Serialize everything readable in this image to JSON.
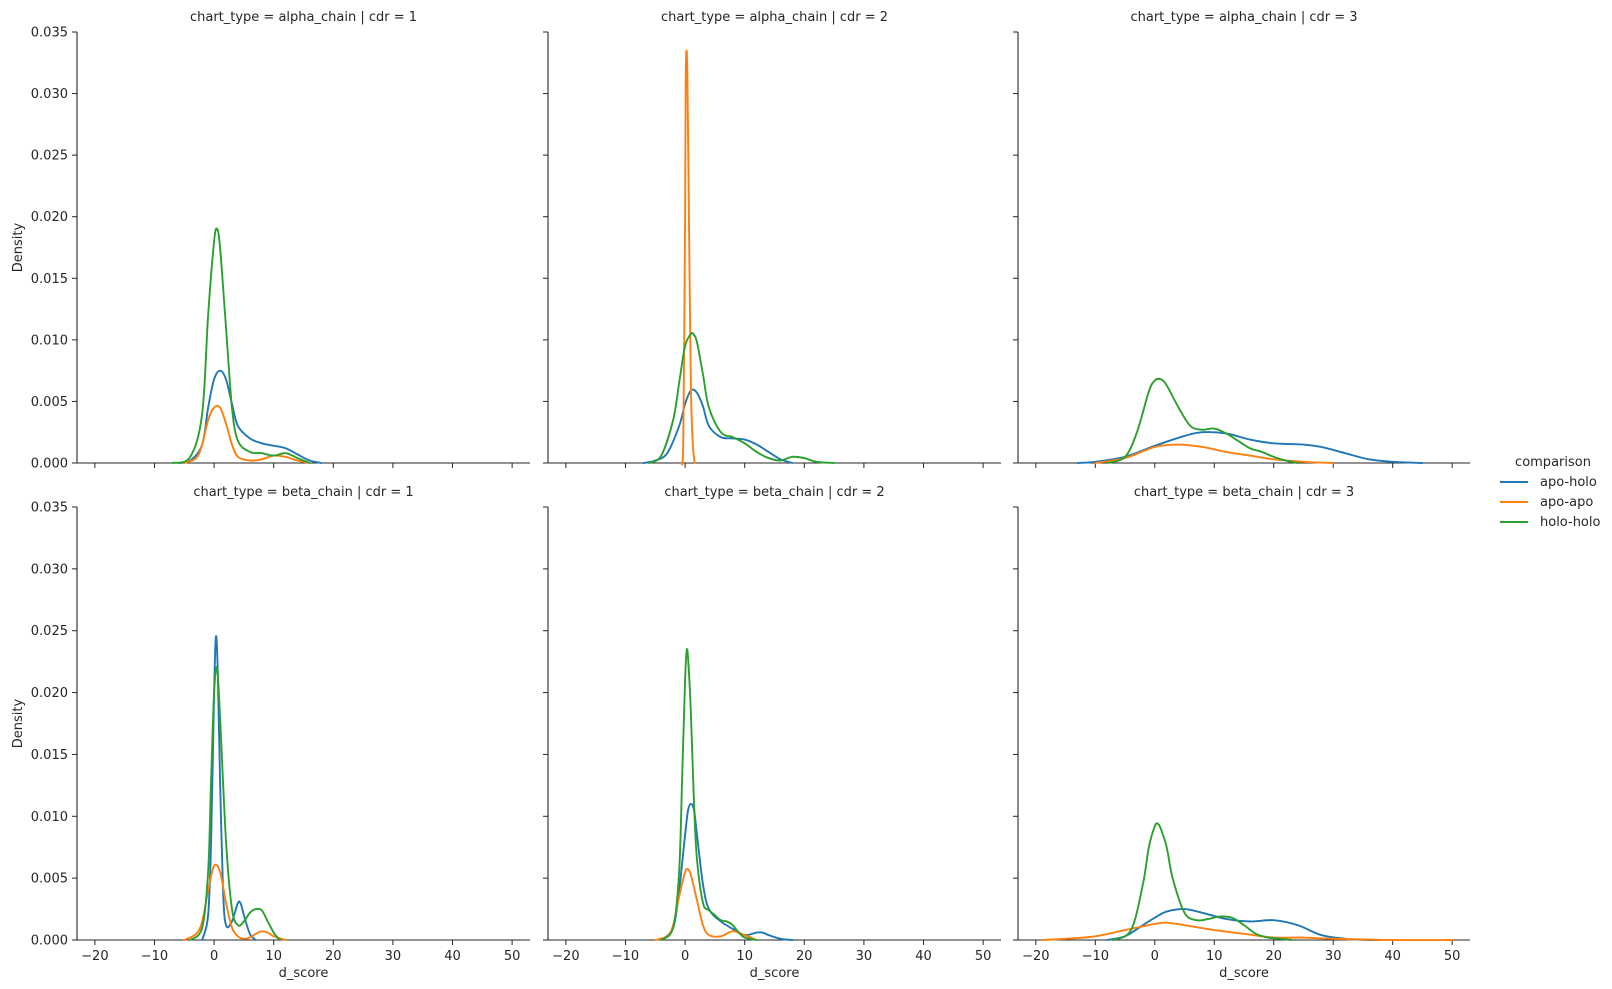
{
  "colors": {
    "apo-holo": "#1f77b4",
    "apo-apo": "#ff7f0e",
    "holo-holo": "#2ca02c",
    "axis": "#262626",
    "background": "#ffffff"
  },
  "legend": {
    "title": "comparison",
    "entries": [
      "apo-holo",
      "apo-apo",
      "holo-holo"
    ],
    "placement": "right-center"
  },
  "chart_data": [
    {
      "type": "line",
      "title": "chart_type = alpha_chain | cdr = 1",
      "xlabel": "",
      "ylabel": "Density",
      "xlim": [
        -23,
        53
      ],
      "ylim": [
        0,
        0.035
      ],
      "series": [
        {
          "name": "apo-holo",
          "x": [
            -6,
            -4,
            -2,
            -1,
            0,
            1,
            2,
            3,
            4,
            6,
            8,
            10,
            12,
            14,
            16,
            18
          ],
          "y": [
            0,
            0.0002,
            0.0015,
            0.0045,
            0.0068,
            0.0075,
            0.0068,
            0.0048,
            0.003,
            0.002,
            0.0016,
            0.0014,
            0.0012,
            0.0007,
            0.0002,
            0
          ]
        },
        {
          "name": "apo-apo",
          "x": [
            -5,
            -3,
            -2,
            -1,
            0,
            1,
            2,
            3,
            4,
            6,
            8,
            10,
            12,
            14,
            16
          ],
          "y": [
            0,
            0.0004,
            0.0015,
            0.0035,
            0.0045,
            0.0045,
            0.0032,
            0.0015,
            0.0005,
            0.0002,
            0.0003,
            0.0006,
            0.0005,
            0.0002,
            0
          ]
        },
        {
          "name": "holo-holo",
          "x": [
            -7,
            -4,
            -2,
            -1,
            0,
            0.5,
            1,
            2,
            3,
            4,
            6,
            8,
            10,
            12,
            14,
            16
          ],
          "y": [
            0,
            0.0005,
            0.004,
            0.012,
            0.018,
            0.019,
            0.0175,
            0.011,
            0.0045,
            0.0018,
            0.0009,
            0.0008,
            0.0006,
            0.0008,
            0.0004,
            0
          ]
        }
      ]
    },
    {
      "type": "line",
      "title": "chart_type = alpha_chain | cdr = 2",
      "xlabel": "",
      "ylabel": "",
      "xlim": [
        -23,
        53
      ],
      "ylim": [
        0,
        0.035
      ],
      "series": [
        {
          "name": "apo-holo",
          "x": [
            -7,
            -5,
            -3,
            -1,
            0,
            1,
            2,
            3,
            4,
            6,
            8,
            10,
            12,
            14,
            16,
            18
          ],
          "y": [
            0,
            0.0002,
            0.0008,
            0.003,
            0.0048,
            0.0059,
            0.0057,
            0.0046,
            0.003,
            0.0021,
            0.002,
            0.0019,
            0.0015,
            0.0009,
            0.0003,
            0
          ]
        },
        {
          "name": "apo-apo",
          "x": [
            -0.6,
            -0.3,
            0,
            0.1,
            0.25,
            0.4,
            0.6,
            0.8,
            1.0,
            1.3,
            1.6
          ],
          "y": [
            0,
            0.002,
            0.02,
            0.031,
            0.0335,
            0.031,
            0.022,
            0.013,
            0.0055,
            0.0015,
            0
          ]
        },
        {
          "name": "holo-holo",
          "x": [
            -6,
            -4,
            -2,
            -1,
            0,
            1,
            1.5,
            2,
            3,
            4,
            6,
            8,
            10,
            12,
            14,
            16,
            18,
            20,
            22,
            25
          ],
          "y": [
            0,
            0.0006,
            0.0035,
            0.0065,
            0.0095,
            0.0105,
            0.0104,
            0.0098,
            0.0072,
            0.0045,
            0.0025,
            0.0021,
            0.0016,
            0.0009,
            0.0004,
            0.0002,
            0.0005,
            0.0004,
            0.0001,
            0
          ]
        }
      ]
    },
    {
      "type": "line",
      "title": "chart_type = alpha_chain | cdr = 3",
      "xlabel": "",
      "ylabel": "",
      "xlim": [
        -23,
        53
      ],
      "ylim": [
        0,
        0.035
      ],
      "series": [
        {
          "name": "apo-holo",
          "x": [
            -13,
            -10,
            -5,
            0,
            5,
            8,
            12,
            16,
            20,
            25,
            28,
            32,
            36,
            40,
            45
          ],
          "y": [
            0,
            0.0001,
            0.0005,
            0.0014,
            0.0022,
            0.0025,
            0.0024,
            0.0019,
            0.0016,
            0.0015,
            0.0013,
            0.0008,
            0.0003,
            0.0001,
            0
          ]
        },
        {
          "name": "apo-apo",
          "x": [
            -10,
            -5,
            0,
            4,
            8,
            12,
            16,
            20,
            25,
            30
          ],
          "y": [
            0,
            0.0004,
            0.0013,
            0.0015,
            0.0013,
            0.0009,
            0.0006,
            0.0003,
            0.0001,
            0
          ]
        },
        {
          "name": "holo-holo",
          "x": [
            -8,
            -5,
            -3,
            -1,
            0,
            1,
            2,
            4,
            6,
            8,
            10,
            12,
            14,
            16,
            18,
            20,
            22,
            24
          ],
          "y": [
            0,
            0.0005,
            0.0025,
            0.0058,
            0.0067,
            0.0068,
            0.0063,
            0.0045,
            0.003,
            0.0027,
            0.0028,
            0.0024,
            0.0018,
            0.0012,
            0.0009,
            0.0005,
            0.0002,
            0
          ]
        }
      ]
    },
    {
      "type": "line",
      "title": "chart_type = beta_chain | cdr = 1",
      "xlabel": "d_score",
      "ylabel": "Density",
      "xlim": [
        -23,
        53
      ],
      "ylim": [
        0,
        0.035
      ],
      "series": [
        {
          "name": "apo-holo",
          "x": [
            -2,
            -1,
            -0.5,
            0,
            0.3,
            0.6,
            1,
            1.5,
            2,
            3,
            4,
            4.5,
            5,
            6,
            7
          ],
          "y": [
            0,
            0.002,
            0.008,
            0.02,
            0.0245,
            0.022,
            0.013,
            0.004,
            0.0012,
            0.0015,
            0.003,
            0.0029,
            0.002,
            0.0005,
            0
          ]
        },
        {
          "name": "apo-apo",
          "x": [
            -5,
            -3,
            -2,
            -1,
            0,
            1,
            2,
            3,
            4,
            5,
            6,
            7,
            8,
            9,
            10,
            12
          ],
          "y": [
            0,
            0.0005,
            0.0015,
            0.004,
            0.006,
            0.0055,
            0.003,
            0.001,
            0.0003,
            0.0001,
            0.0002,
            0.0005,
            0.0007,
            0.0006,
            0.0003,
            0
          ]
        },
        {
          "name": "holo-holo",
          "x": [
            -4,
            -2,
            -1,
            -0.5,
            0,
            0.5,
            1,
            2,
            3,
            4,
            5,
            6,
            7,
            8,
            9,
            10,
            11
          ],
          "y": [
            0,
            0.001,
            0.0055,
            0.013,
            0.02,
            0.022,
            0.018,
            0.008,
            0.0025,
            0.0012,
            0.0015,
            0.0022,
            0.0025,
            0.0024,
            0.0015,
            0.0006,
            0
          ]
        }
      ]
    },
    {
      "type": "line",
      "title": "chart_type = beta_chain | cdr = 2",
      "xlabel": "d_score",
      "ylabel": "",
      "xlim": [
        -23,
        53
      ],
      "ylim": [
        0,
        0.035
      ],
      "series": [
        {
          "name": "apo-holo",
          "x": [
            -4,
            -2,
            -1,
            0,
            0.5,
            1,
            1.5,
            2,
            3,
            4,
            6,
            8,
            10,
            12,
            13,
            14,
            16,
            18
          ],
          "y": [
            0,
            0.001,
            0.004,
            0.0085,
            0.0105,
            0.011,
            0.0105,
            0.0085,
            0.0045,
            0.0025,
            0.0015,
            0.0009,
            0.0004,
            0.0006,
            0.0006,
            0.0004,
            0.0001,
            0
          ]
        },
        {
          "name": "apo-apo",
          "x": [
            -5,
            -3,
            -2,
            -1,
            0,
            0.5,
            1,
            2,
            3,
            4,
            6,
            8,
            10,
            12
          ],
          "y": [
            0,
            0.0003,
            0.0012,
            0.0035,
            0.0055,
            0.0057,
            0.0052,
            0.0032,
            0.0012,
            0.0004,
            0.0003,
            0.0007,
            0.0004,
            0
          ]
        },
        {
          "name": "holo-holo",
          "x": [
            -4,
            -2,
            -1,
            -0.5,
            0,
            0.3,
            0.6,
            1,
            1.5,
            2,
            3,
            4,
            5,
            6,
            7,
            8,
            9,
            10,
            12
          ],
          "y": [
            0,
            0.001,
            0.0055,
            0.013,
            0.021,
            0.0235,
            0.022,
            0.018,
            0.011,
            0.0065,
            0.003,
            0.0024,
            0.002,
            0.0016,
            0.0015,
            0.0012,
            0.0006,
            0.0002,
            0
          ]
        }
      ]
    },
    {
      "type": "line",
      "title": "chart_type = beta_chain | cdr = 3",
      "xlabel": "d_score",
      "ylabel": "",
      "xlim": [
        -23,
        53
      ],
      "ylim": [
        0,
        0.035
      ],
      "series": [
        {
          "name": "apo-holo",
          "x": [
            -8,
            -5,
            -2,
            0,
            2,
            5,
            8,
            12,
            16,
            20,
            24,
            28,
            32,
            36,
            38
          ],
          "y": [
            0,
            0.0003,
            0.0012,
            0.0018,
            0.0023,
            0.0025,
            0.0022,
            0.0017,
            0.0015,
            0.0016,
            0.0012,
            0.0004,
            0.0001,
            0,
            0
          ]
        },
        {
          "name": "apo-apo",
          "x": [
            -19,
            -15,
            -10,
            -5,
            0,
            2,
            5,
            10,
            15,
            20,
            25,
            30,
            40,
            50
          ],
          "y": [
            0,
            0.0001,
            0.0003,
            0.0008,
            0.0013,
            0.0014,
            0.0012,
            0.0008,
            0.0005,
            0.0002,
            0.0002,
            0.0001,
            0,
            0
          ]
        },
        {
          "name": "holo-holo",
          "x": [
            -7,
            -4,
            -2,
            -1,
            0,
            0.5,
            1,
            2,
            3,
            5,
            7,
            9,
            11,
            13,
            15,
            17,
            19,
            21,
            23
          ],
          "y": [
            0,
            0.0008,
            0.0045,
            0.0075,
            0.0092,
            0.0094,
            0.009,
            0.0075,
            0.005,
            0.0022,
            0.0016,
            0.0017,
            0.0019,
            0.0018,
            0.0012,
            0.0005,
            0.0002,
            0.0001,
            0
          ]
        }
      ]
    }
  ],
  "axes": {
    "xticks": [
      -20,
      -10,
      0,
      10,
      20,
      30,
      40,
      50
    ],
    "yticks": [
      "0.000",
      "0.005",
      "0.010",
      "0.015",
      "0.020",
      "0.025",
      "0.030",
      "0.035"
    ],
    "ytick_values": [
      0,
      0.005,
      0.01,
      0.015,
      0.02,
      0.025,
      0.03,
      0.035
    ]
  }
}
